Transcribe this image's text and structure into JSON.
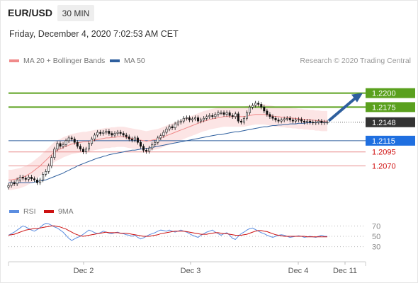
{
  "header": {
    "pair": "EUR/USD",
    "timeframe": "30 MIN",
    "datetime": "Friday, December 4, 2020 7:02:53 AM CET",
    "credit": "Research © 2020 Trading Central"
  },
  "legend": {
    "ma20": "MA 20 + Bollinger Bands",
    "ma50": "MA 50",
    "rsi": "RSI",
    "ma9": "9MA"
  },
  "colors": {
    "ma20": "#f08a8a",
    "ma50": "#2e5f9e",
    "band_fill": "#fbdcdc",
    "resistance": "#5aa01e",
    "support": "#e88a8a",
    "current": "#333333",
    "rsi": "#5b8de0",
    "rsi_ma": "#cc1111",
    "candle": "#111111",
    "arrow": "#2e5f9e"
  },
  "chart_data": [
    {
      "type": "candlestick",
      "x_tick_labels": [
        "Dec 2",
        "Dec 3",
        "Dec 4",
        "Dec 11"
      ],
      "ylim": [
        1.2015,
        1.2245
      ],
      "levels": [
        {
          "label": "1.2200",
          "value": 1.22,
          "kind": "resistance"
        },
        {
          "label": "1.2175",
          "value": 1.2175,
          "kind": "resistance"
        },
        {
          "label": "1.2148",
          "value": 1.2148,
          "kind": "current"
        },
        {
          "label": "1.2115",
          "value": 1.2115,
          "kind": "pivot"
        },
        {
          "label": "1.2095",
          "value": 1.2095,
          "kind": "support"
        },
        {
          "label": "1.2070",
          "value": 1.207,
          "kind": "support"
        }
      ],
      "close": [
        1.2035,
        1.204,
        1.2038,
        1.2045,
        1.205,
        1.2048,
        1.2046,
        1.205,
        1.2047,
        1.2045,
        1.204,
        1.2045,
        1.2055,
        1.206,
        1.207,
        1.2085,
        1.21,
        1.211,
        1.2105,
        1.2108,
        1.2115,
        1.212,
        1.2118,
        1.2112,
        1.2105,
        1.21,
        1.2095,
        1.21,
        1.211,
        1.2118,
        1.2125,
        1.213,
        1.2128,
        1.213,
        1.2132,
        1.2128,
        1.2125,
        1.2128,
        1.213,
        1.2128,
        1.2125,
        1.2122,
        1.2118,
        1.2116,
        1.212,
        1.2112,
        1.2105,
        1.2098,
        1.2096,
        1.2102,
        1.2108,
        1.2112,
        1.212,
        1.2124,
        1.213,
        1.2136,
        1.214,
        1.2138,
        1.2145,
        1.2148,
        1.215,
        1.2155,
        1.2156,
        1.2152,
        1.2154,
        1.2156,
        1.215,
        1.2152,
        1.2155,
        1.2158,
        1.216,
        1.2158,
        1.2162,
        1.2165,
        1.2165,
        1.2162,
        1.2165,
        1.216,
        1.2158,
        1.2163,
        1.215,
        1.2148,
        1.2155,
        1.2165,
        1.2175,
        1.2178,
        1.2182,
        1.218,
        1.2175,
        1.2168,
        1.2162,
        1.2158,
        1.2155,
        1.2152,
        1.215,
        1.2152,
        1.2154,
        1.2155,
        1.2152,
        1.215,
        1.2152,
        1.2153,
        1.215,
        1.2148,
        1.215,
        1.2148,
        1.2147,
        1.2148,
        1.215,
        1.2147,
        1.2148,
        1.2148
      ],
      "ma20": [
        1.2045,
        1.2045,
        1.2046,
        1.2047,
        1.2048,
        1.205,
        1.2052,
        1.2055,
        1.2058,
        1.2062,
        1.2066,
        1.207,
        1.2075,
        1.208,
        1.2085,
        1.209,
        1.2095,
        1.2098,
        1.21,
        1.2103,
        1.2105,
        1.2107,
        1.2109,
        1.211,
        1.2111,
        1.2112,
        1.2113,
        1.2113,
        1.2114,
        1.2115,
        1.2116,
        1.2117,
        1.2118,
        1.2119,
        1.212,
        1.212,
        1.2121,
        1.2121,
        1.2122,
        1.2122,
        1.2122,
        1.2121,
        1.212,
        1.2119,
        1.2118,
        1.2117,
        1.2116,
        1.2115,
        1.2114,
        1.2115,
        1.2116,
        1.2117,
        1.2118,
        1.212,
        1.2122,
        1.2124,
        1.2126,
        1.2128,
        1.213,
        1.2132,
        1.2134,
        1.2136,
        1.2138,
        1.214,
        1.2142,
        1.2144,
        1.2146,
        1.2148,
        1.215,
        1.2151,
        1.2153,
        1.2154,
        1.2155,
        1.2156,
        1.2157,
        1.2158,
        1.2158,
        1.2158,
        1.2158,
        1.2158,
        1.2158,
        1.2158,
        1.2158,
        1.2159,
        1.216,
        1.2161,
        1.2162,
        1.2162,
        1.2162,
        1.2162,
        1.2161,
        1.216,
        1.2159,
        1.2158,
        1.2158,
        1.2157,
        1.2157,
        1.2156,
        1.2156,
        1.2155,
        1.2155,
        1.2154,
        1.2154,
        1.2153,
        1.2153,
        1.2152,
        1.2152,
        1.2151,
        1.2151,
        1.215,
        1.215,
        1.215
      ],
      "ma50": [
        1.204,
        1.204,
        1.204,
        1.204,
        1.204,
        1.204,
        1.204,
        1.204,
        1.204,
        1.2041,
        1.2042,
        1.2043,
        1.2044,
        1.2045,
        1.2047,
        1.2049,
        1.2051,
        1.2053,
        1.2055,
        1.2057,
        1.206,
        1.2062,
        1.2065,
        1.2067,
        1.207,
        1.2072,
        1.2074,
        1.2076,
        1.2078,
        1.208,
        1.2082,
        1.2084,
        1.2085,
        1.2087,
        1.2088,
        1.209,
        1.2091,
        1.2092,
        1.2093,
        1.2094,
        1.2095,
        1.2096,
        1.2097,
        1.2098,
        1.2098,
        1.2099,
        1.21,
        1.2101,
        1.2101,
        1.2102,
        1.2103,
        1.2104,
        1.2105,
        1.2106,
        1.2107,
        1.2108,
        1.2109,
        1.211,
        1.2111,
        1.2112,
        1.2113,
        1.2114,
        1.2115,
        1.2116,
        1.2117,
        1.2118,
        1.2119,
        1.212,
        1.2121,
        1.2122,
        1.2123,
        1.2124,
        1.2125,
        1.2126,
        1.2126,
        1.2127,
        1.2128,
        1.2129,
        1.213,
        1.2131,
        1.2131,
        1.2132,
        1.2133,
        1.2134,
        1.2135,
        1.2136,
        1.2137,
        1.2138,
        1.2139,
        1.214,
        1.214,
        1.2141,
        1.2142,
        1.2142,
        1.2143,
        1.2143,
        1.2144,
        1.2144,
        1.2145,
        1.2145,
        1.2145,
        1.2146,
        1.2146,
        1.2146,
        1.2147,
        1.2147,
        1.2147,
        1.2147,
        1.2148,
        1.2148,
        1.2148,
        1.2148
      ],
      "band_width": 0.0018,
      "projection_to": 1.22
    },
    {
      "type": "line",
      "name": "RSI",
      "ylim": [
        20,
        80
      ],
      "ticks": [
        70,
        50,
        30
      ],
      "rsi": [
        52,
        55,
        58,
        62,
        66,
        70,
        68,
        65,
        62,
        60,
        63,
        67,
        72,
        75,
        74,
        71,
        68,
        66,
        62,
        58,
        52,
        46,
        42,
        45,
        48,
        50,
        54,
        58,
        62,
        60,
        57,
        55,
        57,
        60,
        58,
        56,
        55,
        57,
        58,
        56,
        55,
        53,
        52,
        50,
        52,
        48,
        45,
        47,
        50,
        53,
        55,
        57,
        60,
        62,
        61,
        60,
        62,
        60,
        58,
        60,
        62,
        60,
        58,
        55,
        52,
        50,
        48,
        52,
        55,
        58,
        60,
        62,
        58,
        55,
        52,
        55,
        57,
        52,
        46,
        44,
        50,
        55,
        58,
        62,
        65,
        66,
        63,
        60,
        57,
        55,
        52,
        50,
        48,
        50,
        52,
        53,
        52,
        50,
        48,
        49,
        50,
        51,
        50,
        48,
        49,
        50,
        49,
        48,
        50,
        52,
        50,
        50
      ],
      "ma9": [
        52,
        53,
        54,
        56,
        58,
        60,
        62,
        63,
        64,
        65,
        65,
        66,
        67,
        68,
        69,
        70,
        70,
        69,
        68,
        66,
        64,
        61,
        58,
        55,
        53,
        51,
        50,
        51,
        52,
        53,
        54,
        55,
        56,
        57,
        58,
        57,
        57,
        57,
        57,
        56,
        56,
        56,
        55,
        54,
        53,
        52,
        51,
        50,
        50,
        50,
        51,
        52,
        53,
        55,
        56,
        57,
        58,
        59,
        60,
        60,
        60,
        60,
        59,
        58,
        57,
        56,
        55,
        54,
        54,
        54,
        55,
        56,
        57,
        57,
        56,
        55,
        55,
        54,
        53,
        52,
        52,
        52,
        53,
        54,
        56,
        58,
        60,
        61,
        61,
        60,
        59,
        57,
        55,
        53,
        52,
        51,
        50,
        50,
        50,
        50,
        50,
        50,
        50,
        50,
        49,
        49,
        49,
        49,
        49,
        49,
        49,
        49
      ]
    }
  ]
}
